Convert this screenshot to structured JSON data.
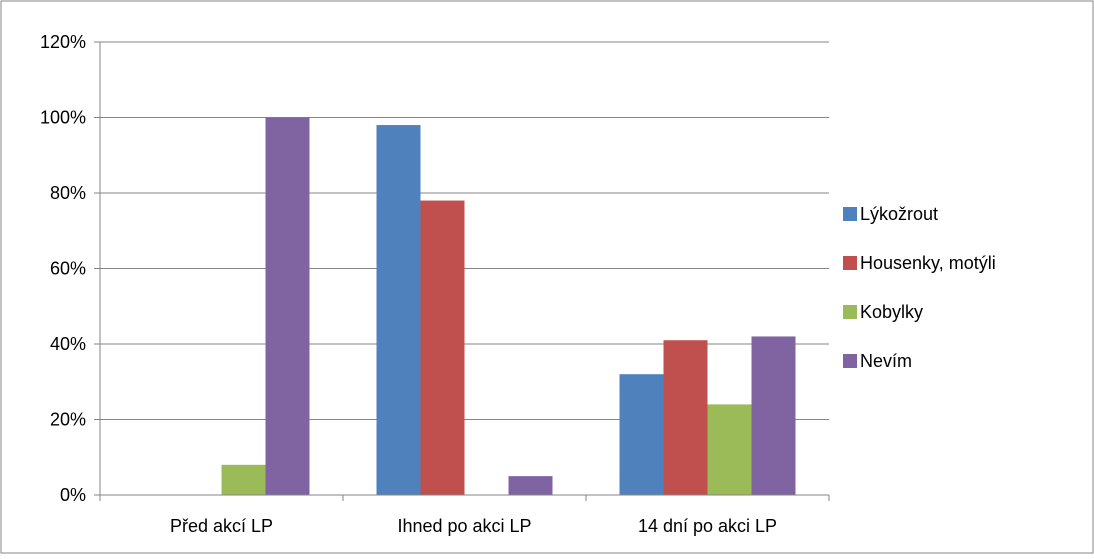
{
  "chart_data": {
    "type": "bar",
    "title": "",
    "xlabel": "",
    "ylabel": "",
    "categories": [
      "Před akcí LP",
      "Ihned po akci LP",
      "14 dní po akci LP"
    ],
    "series": [
      {
        "name": "Lýkožrout",
        "color": "#4F81BD",
        "values": [
          0,
          98,
          32
        ]
      },
      {
        "name": "Housenky, motýli",
        "color": "#C0504D",
        "values": [
          0,
          78,
          41
        ]
      },
      {
        "name": "Kobylky",
        "color": "#9BBB59",
        "values": [
          8,
          0,
          24
        ]
      },
      {
        "name": "Nevím",
        "color": "#8064A2",
        "values": [
          100,
          5,
          42
        ]
      }
    ],
    "ylim": [
      0,
      120
    ],
    "y_ticks": [
      "0%",
      "20%",
      "40%",
      "60%",
      "80%",
      "100%",
      "120%"
    ],
    "grid": true,
    "legend_position": "right"
  }
}
